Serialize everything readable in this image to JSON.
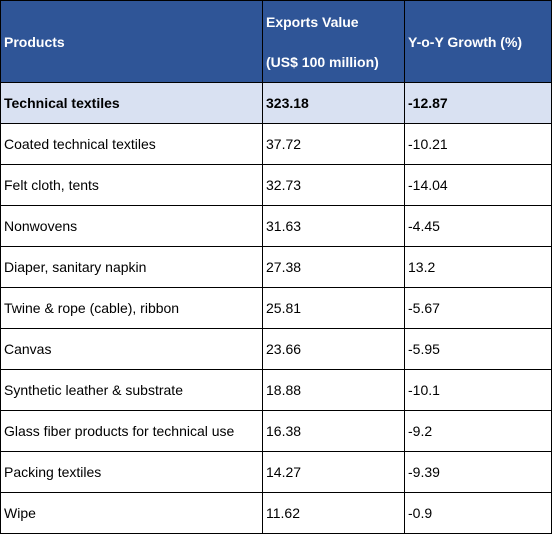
{
  "chart_data": {
    "type": "table",
    "columns": {
      "product": "Products",
      "value_line1": "Exports Value",
      "value_line2": "(US$ 100 million)",
      "growth": "Y-o-Y Growth (%)"
    },
    "total": {
      "product": "Technical textiles",
      "value": "323.18",
      "growth": "-12.87"
    },
    "rows": [
      {
        "product": "Coated technical textiles",
        "value": "37.72",
        "growth": "-10.21"
      },
      {
        "product": "Felt cloth, tents",
        "value": "32.73",
        "growth": "-14.04"
      },
      {
        "product": "Nonwovens",
        "value": "31.63",
        "growth": "-4.45"
      },
      {
        "product": "Diaper, sanitary napkin",
        "value": "27.38",
        "growth": "13.2"
      },
      {
        "product": "Twine & rope (cable), ribbon",
        "value": "25.81",
        "growth": "-5.67"
      },
      {
        "product": "Canvas",
        "value": "23.66",
        "growth": "-5.95"
      },
      {
        "product": "Synthetic leather & substrate",
        "value": "18.88",
        "growth": "-10.1"
      },
      {
        "product": "Glass fiber products for technical use",
        "value": "16.38",
        "growth": "-9.2"
      },
      {
        "product": "Packing textiles",
        "value": "14.27",
        "growth": "-9.39"
      },
      {
        "product": "Wipe",
        "value": "11.62",
        "growth": "-0.9"
      }
    ]
  },
  "colors": {
    "header_bg": "#2f5597",
    "header_text": "#ffffff",
    "total_row_bg": "#d9e1f2",
    "grid": "#000000"
  }
}
